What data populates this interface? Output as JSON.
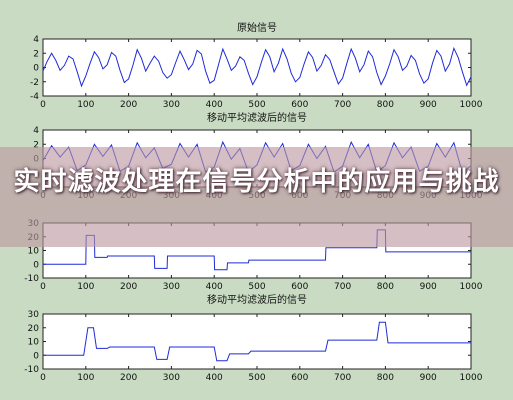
{
  "banner": {
    "title": "实时滤波处理在信号分析中的应用与挑战"
  },
  "chart_data": [
    {
      "type": "line",
      "title": "原始信号",
      "xlim": [
        0,
        1000
      ],
      "ylim": [
        -4,
        4
      ],
      "xticks": [
        0,
        100,
        200,
        300,
        400,
        500,
        600,
        700,
        800,
        900,
        1000
      ],
      "yticks": [
        4,
        2,
        0,
        -2,
        -4
      ],
      "grid": false,
      "series": [
        {
          "x": [
            0,
            10,
            20,
            30,
            40,
            50,
            60,
            70,
            80,
            90,
            100,
            110,
            120,
            130,
            140,
            150,
            160,
            170,
            180,
            190,
            200,
            210,
            220,
            230,
            240,
            250,
            260,
            270,
            280,
            290,
            300,
            310,
            320,
            330,
            340,
            350,
            360,
            370,
            380,
            390,
            400,
            410,
            420,
            430,
            440,
            450,
            460,
            470,
            480,
            490,
            500,
            510,
            520,
            530,
            540,
            550,
            560,
            570,
            580,
            590,
            600,
            610,
            620,
            630,
            640,
            650,
            660,
            670,
            680,
            690,
            700,
            710,
            720,
            730,
            740,
            750,
            760,
            770,
            780,
            790,
            800,
            810,
            820,
            830,
            840,
            850,
            860,
            870,
            880,
            890,
            900,
            910,
            920,
            930,
            940,
            950,
            960,
            970,
            980,
            990,
            1000
          ],
          "values": [
            -0.5,
            0.9,
            2.0,
            1.0,
            -0.4,
            0.3,
            1.6,
            1.2,
            -0.6,
            -2.6,
            -1.2,
            0.6,
            2.2,
            1.4,
            -0.2,
            0.4,
            2.1,
            1.6,
            -0.4,
            -2.1,
            -1.6,
            0.3,
            2.5,
            1.3,
            -0.5,
            0.6,
            1.6,
            0.9,
            -0.7,
            -1.5,
            -1.0,
            0.7,
            2.3,
            1.1,
            -0.3,
            0.5,
            2.4,
            1.9,
            -0.5,
            -2.2,
            -1.8,
            0.4,
            2.6,
            1.2,
            -0.4,
            0.2,
            1.5,
            1.0,
            -0.8,
            -2.4,
            -1.3,
            0.7,
            2.5,
            1.5,
            -0.6,
            0.6,
            2.6,
            1.2,
            -0.8,
            -2.0,
            -1.4,
            0.5,
            2.2,
            1.4,
            -0.5,
            0.3,
            1.8,
            1.1,
            -0.6,
            -2.3,
            -1.5,
            0.6,
            2.6,
            1.3,
            -0.6,
            0.4,
            2.3,
            1.5,
            -0.7,
            -2.4,
            -1.2,
            0.5,
            2.5,
            1.5,
            -0.4,
            0.2,
            1.7,
            1.0,
            -0.9,
            -2.2,
            -1.6,
            0.6,
            2.4,
            1.6,
            -0.5,
            0.5,
            2.7,
            1.4,
            -0.6,
            -2.5,
            -1.3
          ]
        }
      ]
    },
    {
      "type": "line",
      "title": "移动平均滤波后的信号",
      "xlim": [
        0,
        1000
      ],
      "ylim": [
        -4,
        4
      ],
      "xticks": [
        0,
        100,
        200,
        300,
        400,
        500,
        600,
        700,
        800,
        900,
        1000
      ],
      "yticks": [
        4,
        2,
        0,
        -2,
        -4
      ],
      "grid": false,
      "series": [
        {
          "x": [
            0,
            20,
            40,
            60,
            80,
            100,
            120,
            140,
            160,
            180,
            200,
            220,
            240,
            260,
            280,
            300,
            320,
            340,
            360,
            380,
            400,
            420,
            440,
            460,
            480,
            500,
            520,
            540,
            560,
            580,
            600,
            620,
            640,
            660,
            680,
            700,
            720,
            740,
            760,
            780,
            800,
            820,
            840,
            860,
            880,
            900,
            920,
            940,
            960,
            980,
            1000
          ],
          "values": [
            -0.3,
            1.8,
            0.2,
            1.6,
            -1.7,
            -0.9,
            2.0,
            0.3,
            1.9,
            -1.8,
            -1.1,
            2.2,
            0.1,
            1.5,
            -1.4,
            -0.8,
            2.1,
            0.2,
            2.0,
            -1.9,
            -1.2,
            2.3,
            -0.1,
            1.4,
            -1.9,
            -0.9,
            2.2,
            0.2,
            2.1,
            -1.7,
            -1.0,
            2.0,
            0.0,
            1.7,
            -1.9,
            -1.1,
            2.3,
            0.1,
            2.0,
            -1.9,
            -1.0,
            2.2,
            0.1,
            1.6,
            -1.8,
            -1.1,
            2.1,
            0.2,
            2.2,
            -2.0,
            -1.0
          ]
        }
      ]
    },
    {
      "type": "line",
      "title": "",
      "xlim": [
        0,
        1000
      ],
      "ylim": [
        -10,
        30
      ],
      "xticks": [
        0,
        100,
        200,
        300,
        400,
        500,
        600,
        700,
        800,
        900,
        1000
      ],
      "yticks": [
        30,
        20,
        10,
        0,
        -10
      ],
      "grid": false,
      "series": [
        {
          "x": [
            0,
            100,
            101,
            120,
            121,
            150,
            151,
            260,
            261,
            290,
            291,
            400,
            401,
            430,
            431,
            480,
            481,
            660,
            661,
            780,
            781,
            800,
            801,
            1000
          ],
          "values": [
            0,
            0,
            21,
            21,
            5,
            5,
            6,
            6,
            -3,
            -3,
            6,
            6,
            -4,
            -4,
            1,
            1,
            3,
            3,
            12,
            12,
            25,
            25,
            9,
            9
          ]
        }
      ]
    },
    {
      "type": "line",
      "title": "移动平均滤波后的信号",
      "xlim": [
        0,
        1000
      ],
      "ylim": [
        -10,
        30
      ],
      "xticks": [
        0,
        100,
        200,
        300,
        400,
        500,
        600,
        700,
        800,
        900,
        1000
      ],
      "yticks": [
        30,
        20,
        10,
        0,
        -10
      ],
      "grid": false,
      "series": [
        {
          "x": [
            0,
            95,
            105,
            118,
            125,
            150,
            156,
            260,
            266,
            290,
            296,
            400,
            406,
            430,
            436,
            480,
            486,
            660,
            666,
            780,
            786,
            800,
            806,
            1000
          ],
          "values": [
            0,
            0,
            20,
            20,
            5,
            5,
            6,
            6,
            -3,
            -3,
            6,
            6,
            -4,
            -4,
            1,
            1,
            3,
            3,
            11,
            11,
            24,
            24,
            9,
            9
          ]
        }
      ]
    }
  ]
}
